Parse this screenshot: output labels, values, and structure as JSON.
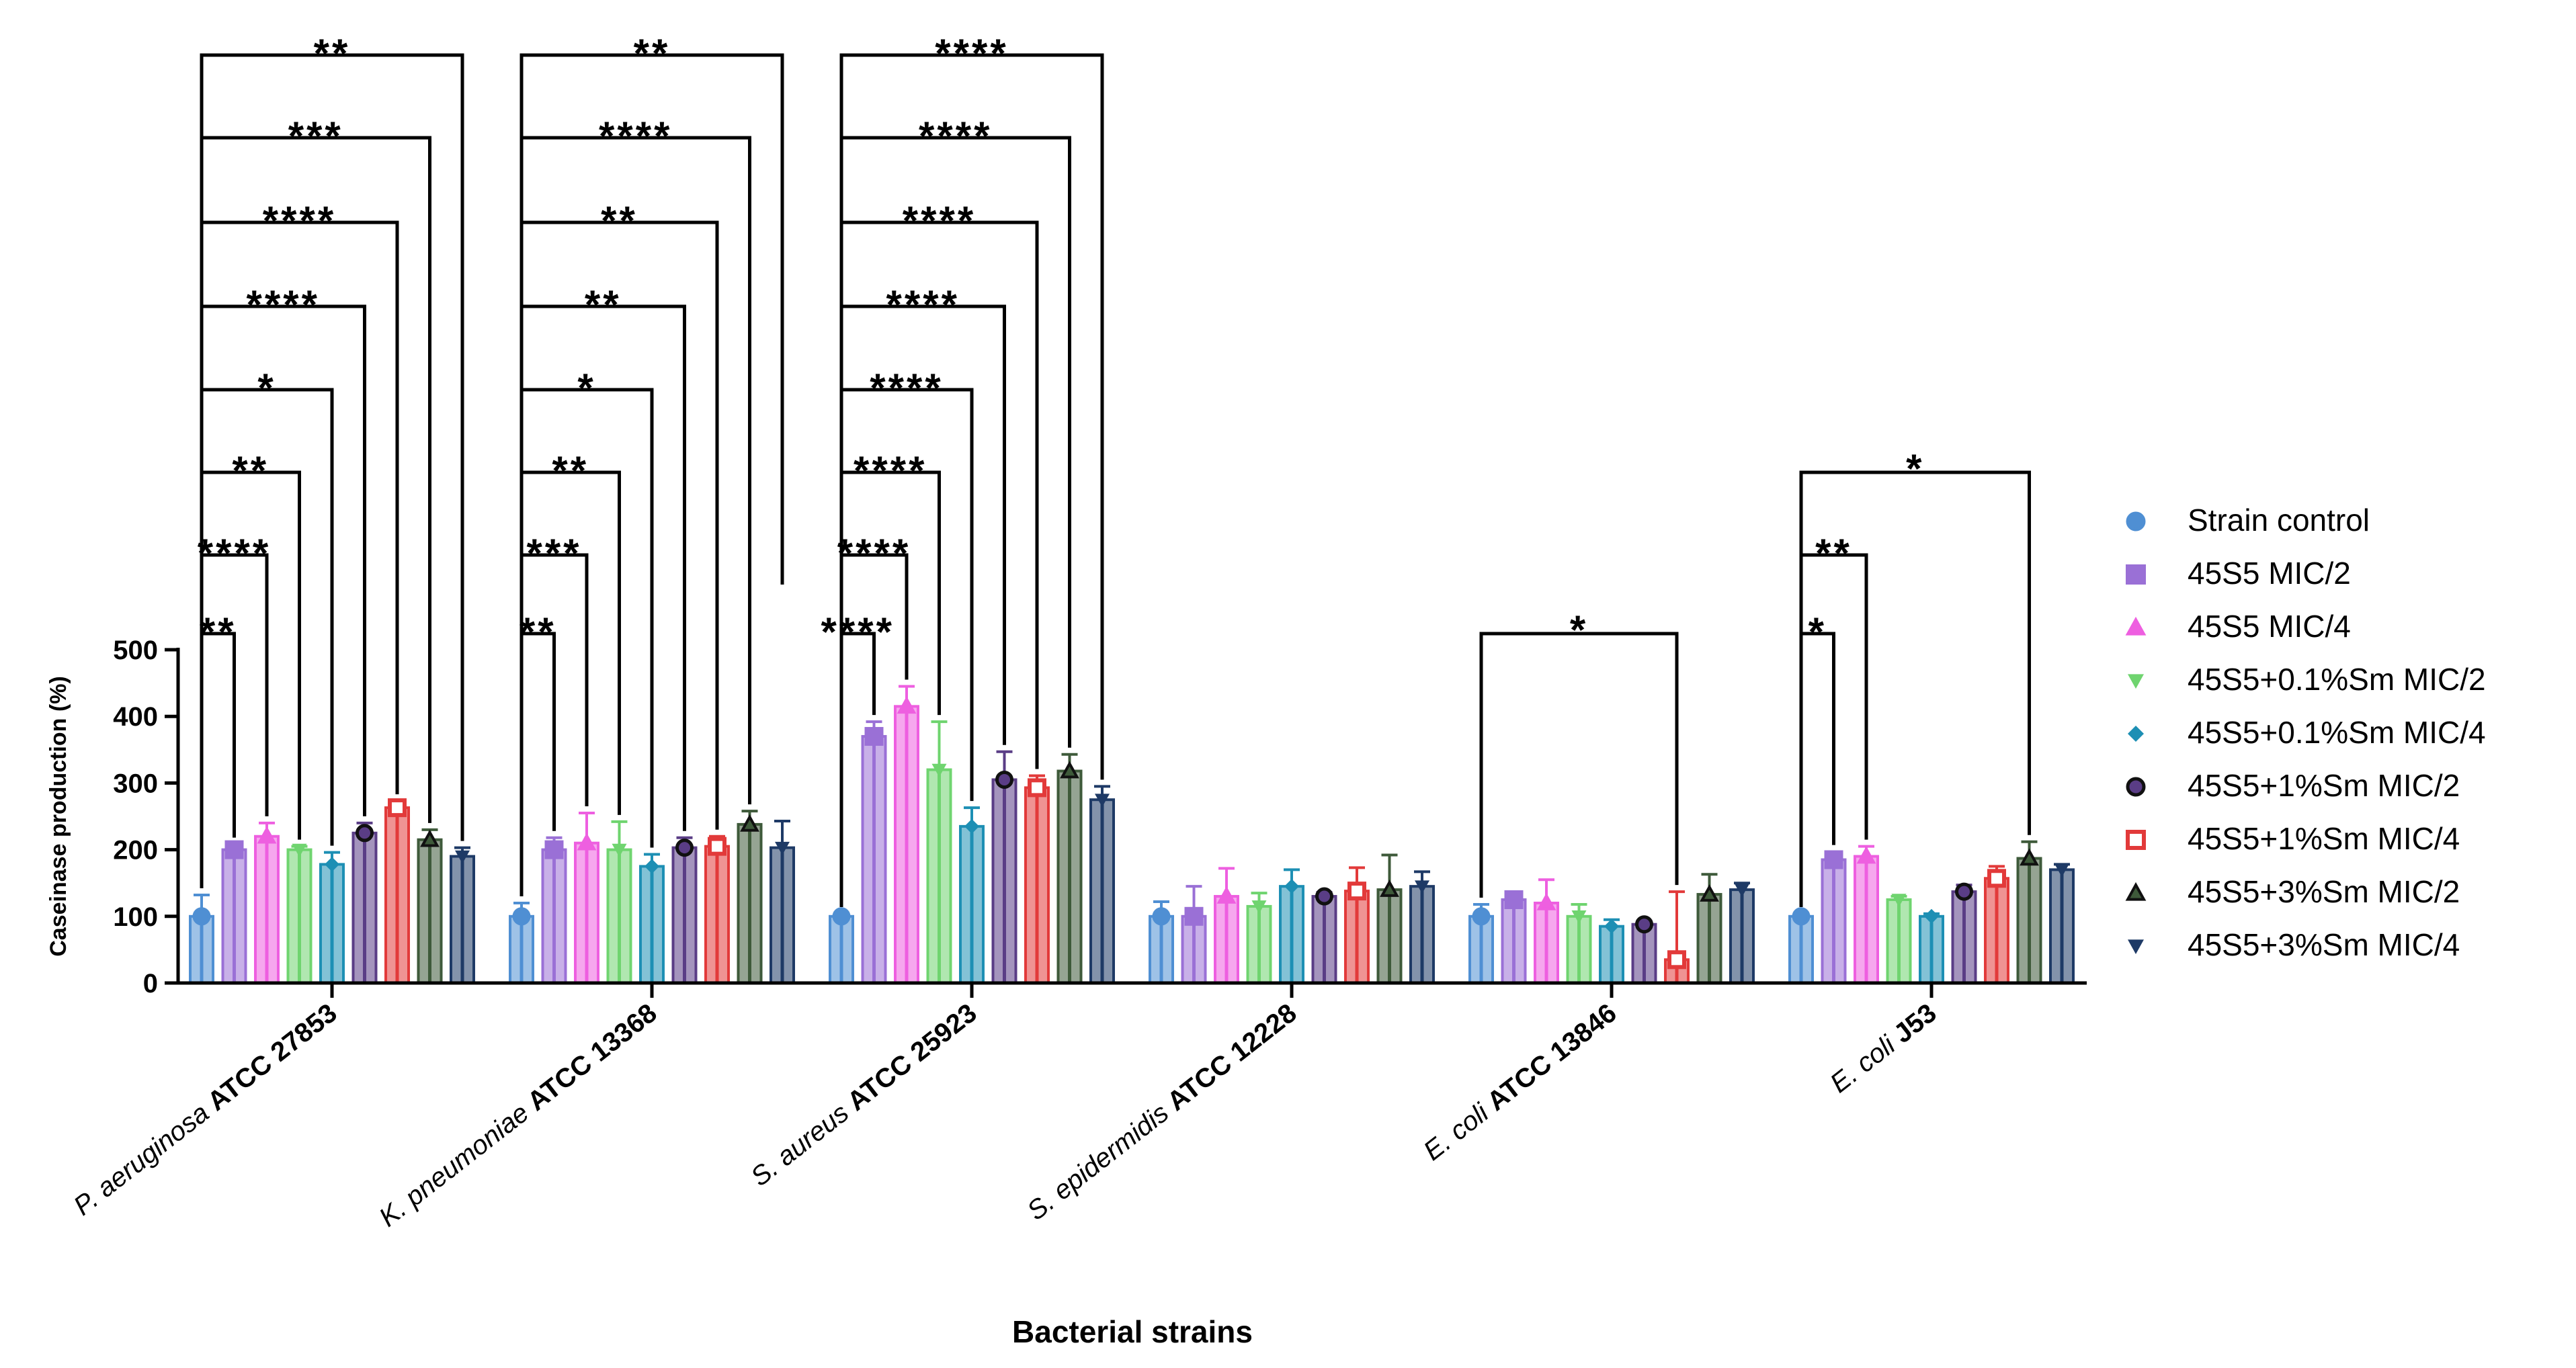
{
  "chart_data": {
    "type": "bar",
    "title": "",
    "xlabel": "Bacterial strains",
    "ylabel": "Caseinase production (%)",
    "ylim": [
      0,
      500
    ],
    "yticks": [
      0,
      100,
      200,
      300,
      400,
      500
    ],
    "legend_position": "right",
    "categories": [
      {
        "italic": "P. aeruginosa ",
        "bold": "ATCC 27853"
      },
      {
        "italic": "K. pneumoniae ",
        "bold": "ATCC 13368"
      },
      {
        "italic": "S. aureus ",
        "bold": "ATCC 25923"
      },
      {
        "italic": "S. epidermidis ",
        "bold": "ATCC 12228"
      },
      {
        "italic": "E. coli ",
        "bold": "ATCC 13846"
      },
      {
        "italic": "E. coli ",
        "bold": "J53"
      }
    ],
    "series": [
      {
        "name": "Strain control",
        "color": "#4f8fd3",
        "marker": "circle",
        "values": [
          100,
          100,
          100,
          100,
          100,
          100
        ],
        "errors": [
          32,
          20,
          4,
          22,
          18,
          4
        ]
      },
      {
        "name": "45S5 MIC/2",
        "color": "#9a70d6",
        "marker": "square",
        "values": [
          200,
          200,
          370,
          100,
          125,
          185
        ],
        "errors": [
          8,
          18,
          22,
          45,
          8,
          12
        ]
      },
      {
        "name": "45S5 MIC/4",
        "color": "#ee5fe0",
        "marker": "triangle-up",
        "values": [
          220,
          210,
          415,
          130,
          120,
          190
        ],
        "errors": [
          20,
          45,
          30,
          42,
          35,
          15
        ]
      },
      {
        "name": "45S5+0.1%Sm MIC/2",
        "color": "#6fd46f",
        "marker": "triangle-down",
        "values": [
          200,
          200,
          320,
          115,
          100,
          125
        ],
        "errors": [
          5,
          42,
          72,
          20,
          18,
          5
        ]
      },
      {
        "name": "45S5+0.1%Sm MIC/4",
        "color": "#1d8fb4",
        "marker": "diamond",
        "values": [
          178,
          175,
          235,
          145,
          85,
          100
        ],
        "errors": [
          18,
          18,
          28,
          25,
          10,
          4
        ]
      },
      {
        "name": "45S5+1%Sm MIC/2",
        "color": "#5a3d86",
        "marker": "circle-outline",
        "values": [
          225,
          203,
          305,
          130,
          88,
          137
        ],
        "errors": [
          15,
          15,
          42,
          6,
          5,
          10
        ]
      },
      {
        "name": "45S5+1%Sm MIC/4",
        "color": "#e23a3a",
        "marker": "square-outline",
        "values": [
          263,
          205,
          293,
          138,
          35,
          157
        ],
        "errors": [
          10,
          15,
          18,
          35,
          102,
          18
        ]
      },
      {
        "name": "45S5+3%Sm MIC/2",
        "color": "#3e5a3a",
        "marker": "triangle-up-outline",
        "values": [
          215,
          238,
          318,
          140,
          133,
          187
        ],
        "errors": [
          15,
          20,
          25,
          52,
          30,
          25
        ]
      },
      {
        "name": "45S5+3%Sm MIC/4",
        "color": "#1e3a66",
        "marker": "triangle-down-solid",
        "values": [
          190,
          203,
          275,
          145,
          140,
          170
        ],
        "errors": [
          13,
          40,
          20,
          22,
          10,
          8
        ]
      }
    ],
    "significance": [
      {
        "group": 0,
        "to": 1,
        "label": "**"
      },
      {
        "group": 0,
        "to": 2,
        "label": "****"
      },
      {
        "group": 0,
        "to": 3,
        "label": "**"
      },
      {
        "group": 0,
        "to": 4,
        "label": "*"
      },
      {
        "group": 0,
        "to": 5,
        "label": "****"
      },
      {
        "group": 0,
        "to": 6,
        "label": "****"
      },
      {
        "group": 0,
        "to": 7,
        "label": "***"
      },
      {
        "group": 0,
        "to": 8,
        "label": "**"
      },
      {
        "group": 1,
        "to": 1,
        "label": "**"
      },
      {
        "group": 1,
        "to": 2,
        "label": "***"
      },
      {
        "group": 1,
        "to": 3,
        "label": "**"
      },
      {
        "group": 1,
        "to": 4,
        "label": "*"
      },
      {
        "group": 1,
        "to": 5,
        "label": "**"
      },
      {
        "group": 1,
        "to": 6,
        "label": "**"
      },
      {
        "group": 1,
        "to": 7,
        "label": "****"
      },
      {
        "group": 1,
        "to": 8,
        "label": "**"
      },
      {
        "group": 2,
        "to": 1,
        "label": "****"
      },
      {
        "group": 2,
        "to": 2,
        "label": "****"
      },
      {
        "group": 2,
        "to": 3,
        "label": "****"
      },
      {
        "group": 2,
        "to": 4,
        "label": "****"
      },
      {
        "group": 2,
        "to": 5,
        "label": "****"
      },
      {
        "group": 2,
        "to": 6,
        "label": "****"
      },
      {
        "group": 2,
        "to": 7,
        "label": "****"
      },
      {
        "group": 2,
        "to": 8,
        "label": "****"
      },
      {
        "group": 4,
        "from": 0,
        "to": 6,
        "label": "*"
      },
      {
        "group": 5,
        "to": 1,
        "label": "*"
      },
      {
        "group": 5,
        "to": 2,
        "label": "**"
      },
      {
        "group": 5,
        "to": 7,
        "label": "*"
      }
    ]
  }
}
